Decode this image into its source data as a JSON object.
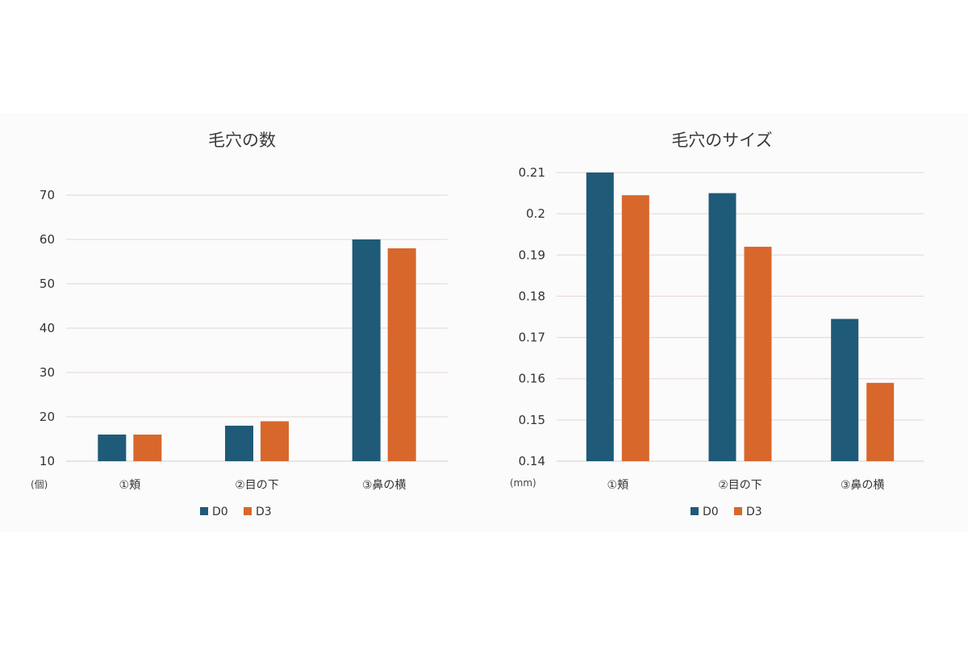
{
  "colors": {
    "D0": "#1f5a78",
    "D3": "#d8672c",
    "background": "#fbfbfb"
  },
  "chart_data": [
    {
      "type": "bar",
      "title": "毛穴の数",
      "unit_label": "(個)",
      "categories": [
        "①頬",
        "②目の下",
        "③鼻の横"
      ],
      "series": [
        {
          "name": "D0",
          "values": [
            16,
            18,
            60
          ]
        },
        {
          "name": "D3",
          "values": [
            16,
            19,
            58
          ]
        }
      ],
      "ylim": [
        10,
        70
      ],
      "yticks": [
        "10",
        "20",
        "30",
        "40",
        "50",
        "60",
        "70"
      ],
      "ytick_values": [
        10,
        20,
        30,
        40,
        50,
        60,
        70
      ],
      "grid": true,
      "legend": "bottom"
    },
    {
      "type": "bar",
      "title": "毛穴のサイズ",
      "unit_label": "(mm)",
      "categories": [
        "①頬",
        "②目の下",
        "③鼻の横"
      ],
      "series": [
        {
          "name": "D0",
          "values": [
            0.21,
            0.205,
            0.1745
          ]
        },
        {
          "name": "D3",
          "values": [
            0.2045,
            0.192,
            0.159
          ]
        }
      ],
      "ylim": [
        0.14,
        0.21
      ],
      "yticks": [
        "0.14",
        "0.15",
        "0.16",
        "0.17",
        "0.18",
        "0.19",
        "0.2",
        "0.21"
      ],
      "ytick_values": [
        0.14,
        0.15,
        0.16,
        0.17,
        0.18,
        0.19,
        0.2,
        0.21
      ],
      "grid": true,
      "legend": "bottom"
    }
  ]
}
